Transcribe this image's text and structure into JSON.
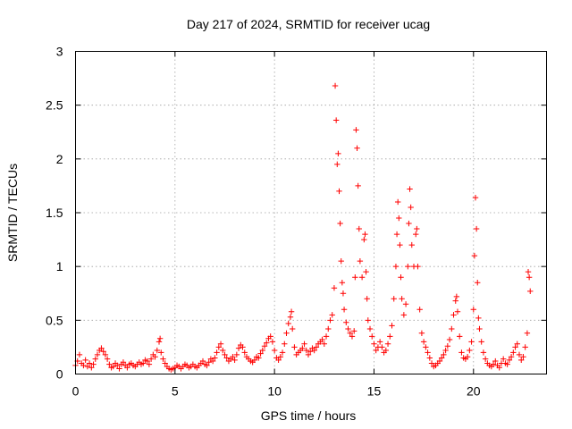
{
  "chart_data": {
    "type": "scatter",
    "title": "Day 217 of 2024, SRMTID for receiver ucag",
    "xlabel": "GPS time / hours",
    "ylabel": "SRMTID / TECUs",
    "xlim": [
      0,
      23.67
    ],
    "ylim": [
      0,
      3
    ],
    "grid": true,
    "marker": "+",
    "color": "#ff0000",
    "x_ticks": [
      0,
      5,
      10,
      15,
      20
    ],
    "y_ticks": [
      0,
      0.5,
      1,
      1.5,
      2,
      2.5,
      3
    ],
    "x_tick_labels": [
      "0",
      "5",
      "10",
      "15",
      "20"
    ],
    "y_tick_labels": [
      "0",
      "0.5",
      "1",
      "1.5",
      "2",
      "2.5",
      "3"
    ],
    "series": [
      {
        "name": "SRMTID",
        "note": "approximate envelope of the dense point cloud, sampled every ~0.05 h; values are [x_hours, srmtid]",
        "points": [
          [
            0.0,
            0.08
          ],
          [
            0.1,
            0.12
          ],
          [
            0.2,
            0.18
          ],
          [
            0.3,
            0.1
          ],
          [
            0.4,
            0.08
          ],
          [
            0.5,
            0.13
          ],
          [
            0.6,
            0.07
          ],
          [
            0.7,
            0.1
          ],
          [
            0.8,
            0.06
          ],
          [
            0.9,
            0.09
          ],
          [
            1.0,
            0.14
          ],
          [
            1.1,
            0.18
          ],
          [
            1.2,
            0.22
          ],
          [
            1.3,
            0.24
          ],
          [
            1.4,
            0.21
          ],
          [
            1.5,
            0.18
          ],
          [
            1.6,
            0.14
          ],
          [
            1.7,
            0.09
          ],
          [
            1.8,
            0.06
          ],
          [
            1.9,
            0.07
          ],
          [
            2.0,
            0.1
          ],
          [
            2.1,
            0.08
          ],
          [
            2.2,
            0.05
          ],
          [
            2.3,
            0.09
          ],
          [
            2.4,
            0.11
          ],
          [
            2.5,
            0.08
          ],
          [
            2.6,
            0.06
          ],
          [
            2.7,
            0.09
          ],
          [
            2.8,
            0.1
          ],
          [
            2.9,
            0.08
          ],
          [
            3.0,
            0.07
          ],
          [
            3.1,
            0.09
          ],
          [
            3.2,
            0.11
          ],
          [
            3.3,
            0.09
          ],
          [
            3.4,
            0.1
          ],
          [
            3.5,
            0.13
          ],
          [
            3.6,
            0.12
          ],
          [
            3.7,
            0.09
          ],
          [
            3.8,
            0.14
          ],
          [
            3.9,
            0.18
          ],
          [
            4.0,
            0.16
          ],
          [
            4.1,
            0.22
          ],
          [
            4.2,
            0.3
          ],
          [
            4.25,
            0.33
          ],
          [
            4.3,
            0.2
          ],
          [
            4.4,
            0.14
          ],
          [
            4.5,
            0.1
          ],
          [
            4.6,
            0.07
          ],
          [
            4.7,
            0.05
          ],
          [
            4.8,
            0.04
          ],
          [
            4.9,
            0.05
          ],
          [
            5.0,
            0.06
          ],
          [
            5.1,
            0.08
          ],
          [
            5.2,
            0.07
          ],
          [
            5.3,
            0.05
          ],
          [
            5.4,
            0.07
          ],
          [
            5.5,
            0.09
          ],
          [
            5.6,
            0.08
          ],
          [
            5.7,
            0.06
          ],
          [
            5.8,
            0.07
          ],
          [
            5.9,
            0.09
          ],
          [
            6.0,
            0.07
          ],
          [
            6.1,
            0.06
          ],
          [
            6.2,
            0.08
          ],
          [
            6.3,
            0.1
          ],
          [
            6.4,
            0.12
          ],
          [
            6.5,
            0.09
          ],
          [
            6.6,
            0.08
          ],
          [
            6.7,
            0.11
          ],
          [
            6.8,
            0.14
          ],
          [
            6.9,
            0.12
          ],
          [
            7.0,
            0.15
          ],
          [
            7.1,
            0.2
          ],
          [
            7.2,
            0.25
          ],
          [
            7.3,
            0.28
          ],
          [
            7.4,
            0.22
          ],
          [
            7.5,
            0.18
          ],
          [
            7.6,
            0.15
          ],
          [
            7.7,
            0.12
          ],
          [
            7.8,
            0.14
          ],
          [
            7.9,
            0.16
          ],
          [
            8.0,
            0.13
          ],
          [
            8.1,
            0.18
          ],
          [
            8.2,
            0.24
          ],
          [
            8.3,
            0.27
          ],
          [
            8.4,
            0.25
          ],
          [
            8.5,
            0.2
          ],
          [
            8.6,
            0.16
          ],
          [
            8.7,
            0.14
          ],
          [
            8.8,
            0.12
          ],
          [
            8.9,
            0.11
          ],
          [
            9.0,
            0.13
          ],
          [
            9.1,
            0.16
          ],
          [
            9.2,
            0.15
          ],
          [
            9.3,
            0.19
          ],
          [
            9.4,
            0.22
          ],
          [
            9.5,
            0.26
          ],
          [
            9.6,
            0.29
          ],
          [
            9.7,
            0.33
          ],
          [
            9.8,
            0.35
          ],
          [
            9.9,
            0.3
          ],
          [
            10.0,
            0.22
          ],
          [
            10.1,
            0.15
          ],
          [
            10.2,
            0.13
          ],
          [
            10.3,
            0.16
          ],
          [
            10.4,
            0.2
          ],
          [
            10.5,
            0.28
          ],
          [
            10.6,
            0.38
          ],
          [
            10.7,
            0.47
          ],
          [
            10.8,
            0.53
          ],
          [
            10.85,
            0.58
          ],
          [
            10.9,
            0.42
          ],
          [
            11.0,
            0.25
          ],
          [
            11.1,
            0.18
          ],
          [
            11.2,
            0.2
          ],
          [
            11.3,
            0.22
          ],
          [
            11.4,
            0.24
          ],
          [
            11.5,
            0.28
          ],
          [
            11.6,
            0.22
          ],
          [
            11.7,
            0.18
          ],
          [
            11.8,
            0.21
          ],
          [
            11.9,
            0.24
          ],
          [
            12.0,
            0.22
          ],
          [
            12.1,
            0.25
          ],
          [
            12.2,
            0.28
          ],
          [
            12.3,
            0.3
          ],
          [
            12.4,
            0.32
          ],
          [
            12.5,
            0.28
          ],
          [
            12.6,
            0.35
          ],
          [
            12.7,
            0.42
          ],
          [
            12.8,
            0.5
          ],
          [
            12.9,
            0.55
          ],
          [
            13.0,
            0.8
          ],
          [
            13.05,
            2.68
          ],
          [
            13.1,
            2.36
          ],
          [
            13.15,
            1.95
          ],
          [
            13.2,
            2.05
          ],
          [
            13.25,
            1.7
          ],
          [
            13.3,
            1.4
          ],
          [
            13.35,
            1.05
          ],
          [
            13.4,
            0.85
          ],
          [
            13.45,
            0.75
          ],
          [
            13.5,
            0.6
          ],
          [
            13.6,
            0.48
          ],
          [
            13.7,
            0.42
          ],
          [
            13.8,
            0.38
          ],
          [
            13.9,
            0.35
          ],
          [
            14.0,
            0.4
          ],
          [
            14.05,
            0.9
          ],
          [
            14.1,
            2.27
          ],
          [
            14.15,
            2.1
          ],
          [
            14.2,
            1.75
          ],
          [
            14.25,
            1.35
          ],
          [
            14.3,
            1.05
          ],
          [
            14.4,
            0.9
          ],
          [
            14.5,
            1.25
          ],
          [
            14.55,
            1.3
          ],
          [
            14.6,
            0.95
          ],
          [
            14.65,
            0.7
          ],
          [
            14.7,
            0.5
          ],
          [
            14.8,
            0.42
          ],
          [
            14.9,
            0.35
          ],
          [
            15.0,
            0.28
          ],
          [
            15.1,
            0.22
          ],
          [
            15.2,
            0.25
          ],
          [
            15.3,
            0.3
          ],
          [
            15.4,
            0.25
          ],
          [
            15.5,
            0.2
          ],
          [
            15.6,
            0.22
          ],
          [
            15.7,
            0.28
          ],
          [
            15.8,
            0.35
          ],
          [
            15.9,
            0.45
          ],
          [
            16.0,
            0.7
          ],
          [
            16.1,
            1.0
          ],
          [
            16.15,
            1.3
          ],
          [
            16.2,
            1.6
          ],
          [
            16.25,
            1.45
          ],
          [
            16.3,
            1.2
          ],
          [
            16.35,
            0.9
          ],
          [
            16.4,
            0.7
          ],
          [
            16.5,
            0.55
          ],
          [
            16.6,
            0.65
          ],
          [
            16.7,
            1.0
          ],
          [
            16.75,
            1.4
          ],
          [
            16.8,
            1.72
          ],
          [
            16.85,
            1.55
          ],
          [
            16.9,
            1.2
          ],
          [
            17.0,
            1.0
          ],
          [
            17.1,
            1.3
          ],
          [
            17.15,
            1.35
          ],
          [
            17.2,
            1.0
          ],
          [
            17.3,
            0.6
          ],
          [
            17.4,
            0.38
          ],
          [
            17.5,
            0.3
          ],
          [
            17.6,
            0.25
          ],
          [
            17.7,
            0.2
          ],
          [
            17.8,
            0.15
          ],
          [
            17.9,
            0.1
          ],
          [
            18.0,
            0.07
          ],
          [
            18.1,
            0.08
          ],
          [
            18.2,
            0.1
          ],
          [
            18.3,
            0.12
          ],
          [
            18.4,
            0.15
          ],
          [
            18.5,
            0.18
          ],
          [
            18.6,
            0.22
          ],
          [
            18.7,
            0.26
          ],
          [
            18.8,
            0.32
          ],
          [
            18.9,
            0.42
          ],
          [
            19.0,
            0.55
          ],
          [
            19.1,
            0.68
          ],
          [
            19.15,
            0.72
          ],
          [
            19.2,
            0.58
          ],
          [
            19.3,
            0.35
          ],
          [
            19.4,
            0.2
          ],
          [
            19.5,
            0.15
          ],
          [
            19.6,
            0.14
          ],
          [
            19.7,
            0.16
          ],
          [
            19.8,
            0.22
          ],
          [
            19.9,
            0.3
          ],
          [
            20.0,
            0.6
          ],
          [
            20.05,
            1.1
          ],
          [
            20.1,
            1.64
          ],
          [
            20.15,
            1.35
          ],
          [
            20.2,
            0.85
          ],
          [
            20.25,
            0.52
          ],
          [
            20.3,
            0.42
          ],
          [
            20.4,
            0.3
          ],
          [
            20.5,
            0.2
          ],
          [
            20.6,
            0.14
          ],
          [
            20.7,
            0.1
          ],
          [
            20.8,
            0.08
          ],
          [
            20.9,
            0.07
          ],
          [
            21.0,
            0.09
          ],
          [
            21.1,
            0.12
          ],
          [
            21.2,
            0.08
          ],
          [
            21.3,
            0.06
          ],
          [
            21.4,
            0.1
          ],
          [
            21.5,
            0.14
          ],
          [
            21.6,
            0.1
          ],
          [
            21.7,
            0.09
          ],
          [
            21.8,
            0.13
          ],
          [
            21.9,
            0.16
          ],
          [
            22.0,
            0.2
          ],
          [
            22.1,
            0.25
          ],
          [
            22.2,
            0.28
          ],
          [
            22.3,
            0.18
          ],
          [
            22.4,
            0.13
          ],
          [
            22.5,
            0.16
          ],
          [
            22.6,
            0.25
          ],
          [
            22.7,
            0.38
          ],
          [
            22.75,
            0.95
          ],
          [
            22.8,
            0.9
          ],
          [
            22.85,
            0.77
          ]
        ]
      }
    ]
  }
}
